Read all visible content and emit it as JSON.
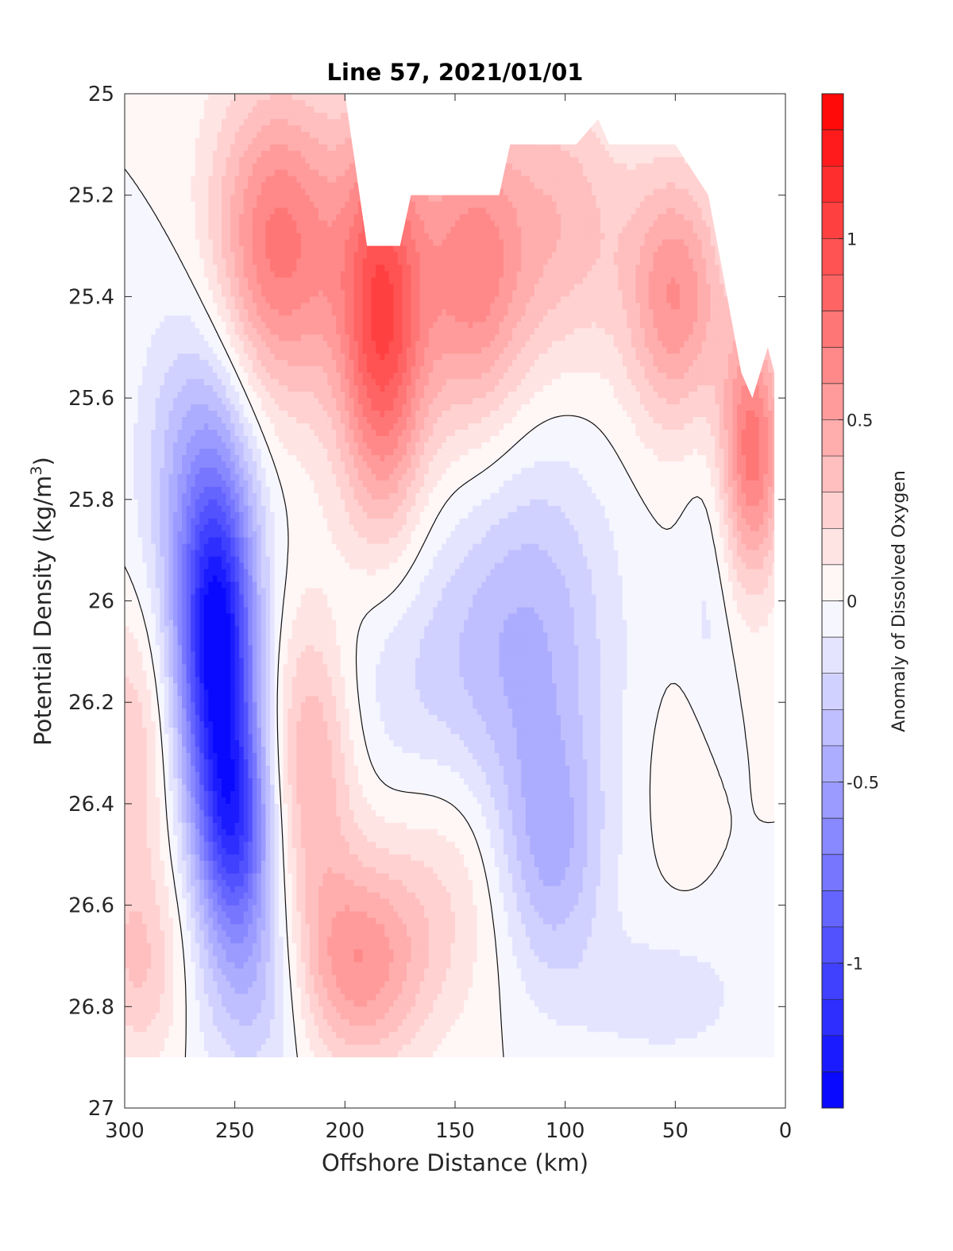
{
  "chart_data": {
    "type": "heatmap",
    "title": "Line 57, 2021/01/01",
    "xlabel": "Offshore Distance (km)",
    "ylabel_main": "Potential Density (kg/m",
    "ylabel_sup": "3",
    "ylabel_close": ")",
    "colorbar_label": "Anomaly of Dissolved Oxygen",
    "xlim": [
      300,
      0
    ],
    "ylim": [
      25,
      27
    ],
    "x_reversed": true,
    "y_reversed": true,
    "x_ticks": [
      300,
      250,
      200,
      150,
      100,
      50,
      0
    ],
    "x_tick_labels": [
      "300",
      "250",
      "200",
      "150",
      "100",
      "50",
      "0"
    ],
    "y_ticks": [
      25,
      25.2,
      25.4,
      25.6,
      25.8,
      26,
      26.2,
      26.4,
      26.6,
      26.8,
      27
    ],
    "y_tick_labels": [
      "25",
      "25.2",
      "25.4",
      "25.6",
      "25.8",
      "26",
      "26.2",
      "26.4",
      "26.6",
      "26.8",
      "27"
    ],
    "clim": [
      -1.4,
      1.4
    ],
    "colorbar_levels": 28,
    "colorbar_ticks": [
      1,
      0.5,
      0,
      -0.5,
      -1
    ],
    "colorbar_tick_labels": [
      "1",
      "0.5",
      "0",
      "-0.5",
      "-1"
    ],
    "colormap": {
      "negative": "#0000ff",
      "zero": "#ffffff",
      "positive": "#ff0000"
    },
    "zero_contour": true,
    "data_bottom_density": 26.9,
    "data_top_density": [
      [
        300,
        25.0
      ],
      [
        290,
        25.0
      ],
      [
        200,
        25.0
      ],
      [
        195,
        25.15
      ],
      [
        190,
        25.3
      ],
      [
        175,
        25.3
      ],
      [
        170,
        25.2
      ],
      [
        130,
        25.2
      ],
      [
        125,
        25.1
      ],
      [
        95,
        25.1
      ],
      [
        85,
        25.05
      ],
      [
        80,
        25.1
      ],
      [
        50,
        25.1
      ],
      [
        35,
        25.2
      ],
      [
        20,
        25.55
      ],
      [
        15,
        25.6
      ],
      [
        8,
        25.5
      ],
      [
        5,
        25.55
      ]
    ],
    "features": [
      {
        "x": 258,
        "y": 26.1,
        "sx": 12,
        "sy": 0.22,
        "value": -1.25
      },
      {
        "x": 250,
        "y": 26.45,
        "sx": 12,
        "sy": 0.16,
        "value": -0.9
      },
      {
        "x": 265,
        "y": 25.75,
        "sx": 18,
        "sy": 0.25,
        "value": -0.45
      },
      {
        "x": 240,
        "y": 26.75,
        "sx": 18,
        "sy": 0.15,
        "value": -0.35
      },
      {
        "x": 230,
        "y": 25.3,
        "sx": 22,
        "sy": 0.22,
        "value": 0.75
      },
      {
        "x": 183,
        "y": 25.45,
        "sx": 14,
        "sy": 0.28,
        "value": 0.95
      },
      {
        "x": 142,
        "y": 25.35,
        "sx": 18,
        "sy": 0.22,
        "value": 0.65
      },
      {
        "x": 100,
        "y": 25.25,
        "sx": 20,
        "sy": 0.2,
        "value": 0.35
      },
      {
        "x": 50,
        "y": 25.4,
        "sx": 16,
        "sy": 0.18,
        "value": 0.6
      },
      {
        "x": 15,
        "y": 25.7,
        "sx": 10,
        "sy": 0.18,
        "value": 0.75
      },
      {
        "x": 215,
        "y": 26.3,
        "sx": 14,
        "sy": 0.22,
        "value": 0.45
      },
      {
        "x": 195,
        "y": 26.72,
        "sx": 22,
        "sy": 0.14,
        "value": 0.55
      },
      {
        "x": 150,
        "y": 26.55,
        "sx": 30,
        "sy": 0.18,
        "value": 0.2
      },
      {
        "x": 115,
        "y": 26.05,
        "sx": 26,
        "sy": 0.25,
        "value": -0.35
      },
      {
        "x": 108,
        "y": 26.5,
        "sx": 18,
        "sy": 0.18,
        "value": -0.45
      },
      {
        "x": 170,
        "y": 26.15,
        "sx": 35,
        "sy": 0.2,
        "value": -0.2
      },
      {
        "x": 298,
        "y": 26.3,
        "sx": 12,
        "sy": 0.2,
        "value": 0.3
      },
      {
        "x": 293,
        "y": 26.72,
        "sx": 14,
        "sy": 0.14,
        "value": 0.3
      },
      {
        "x": 55,
        "y": 26.78,
        "sx": 30,
        "sy": 0.1,
        "value": -0.15
      },
      {
        "x": 45,
        "y": 26.35,
        "sx": 10,
        "sy": 0.12,
        "value": 0.12
      },
      {
        "x": 35,
        "y": 26.0,
        "sx": 8,
        "sy": 0.25,
        "value": -0.12
      }
    ]
  }
}
